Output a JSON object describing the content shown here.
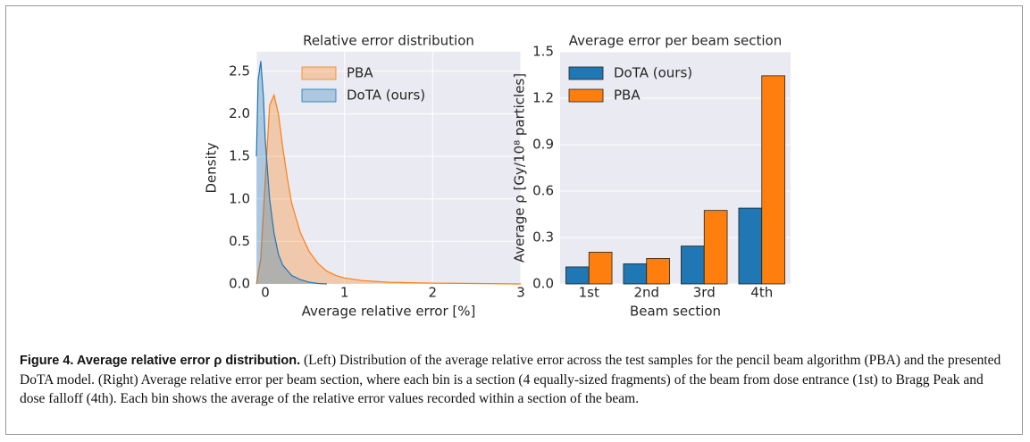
{
  "chart_data": [
    {
      "type": "area",
      "title": "Relative error distribution",
      "xlabel": "Average relative error [%]",
      "ylabel": "Density",
      "xlim": [
        0,
        3
      ],
      "xticks": [
        0,
        1,
        2,
        3
      ],
      "ylim": [
        0,
        2.73
      ],
      "yticks": [
        {
          "value": 0,
          "label": "0.0"
        },
        0.5,
        {
          "value": 1,
          "label": "1.0"
        },
        1.5,
        {
          "value": 2,
          "label": "2.0"
        },
        2.5
      ],
      "grid": true,
      "legend": "upper right",
      "series": [
        {
          "name": "PBA",
          "color": "#ff7f0e",
          "x": [
            0,
            0.05,
            0.1,
            0.15,
            0.2,
            0.25,
            0.3,
            0.35,
            0.4,
            0.5,
            0.6,
            0.7,
            0.8,
            0.9,
            1.0,
            1.2,
            1.5,
            2,
            2.5,
            3
          ],
          "values": [
            0,
            0.3,
            1.2,
            2.1,
            2.22,
            2.0,
            1.6,
            1.25,
            0.95,
            0.6,
            0.38,
            0.24,
            0.15,
            0.1,
            0.07,
            0.04,
            0.02,
            0.01,
            0.005,
            0
          ]
        },
        {
          "name": "DoTA (ours)",
          "color": "#1f77b4",
          "x": [
            0,
            0.02,
            0.05,
            0.08,
            0.1,
            0.15,
            0.2,
            0.25,
            0.3,
            0.4,
            0.5,
            0.6,
            0.7,
            0.8
          ],
          "values": [
            1.5,
            2.4,
            2.62,
            2.2,
            1.7,
            1.0,
            0.6,
            0.35,
            0.22,
            0.1,
            0.05,
            0.02,
            0.005,
            0
          ]
        }
      ]
    },
    {
      "type": "bar",
      "title": "Average error per beam section",
      "xlabel": "Beam section",
      "ylabel": "Average ρ [Gy/10⁸ particles]",
      "categories": [
        "1st",
        "2nd",
        "3rd",
        "4th"
      ],
      "ylim": [
        0,
        1.5
      ],
      "yticks": [
        {
          "value": 0,
          "label": "0.0"
        },
        0.3,
        0.6,
        0.9,
        1.2,
        1.5
      ],
      "grid": true,
      "legend": "upper left",
      "series": [
        {
          "name": "DoTA (ours)",
          "color": "#1f77b4",
          "values": [
            0.11,
            0.13,
            0.245,
            0.49
          ]
        },
        {
          "name": "PBA",
          "color": "#ff7f0e",
          "values": [
            0.205,
            0.165,
            0.475,
            1.345
          ]
        }
      ]
    }
  ],
  "caption": {
    "label": "Figure 4. Average relative error ρ distribution.",
    "text": "(Left) Distribution of the average relative error across the test samples for the pencil beam algorithm (PBA) and the presented DoTA model. (Right) Average relative error per beam section, where each bin is a section (4 equally-sized fragments) of the beam from dose entrance (1st) to Bragg Peak and dose falloff (4th). Each bin shows the average of the relative error values recorded within a section of the beam."
  }
}
